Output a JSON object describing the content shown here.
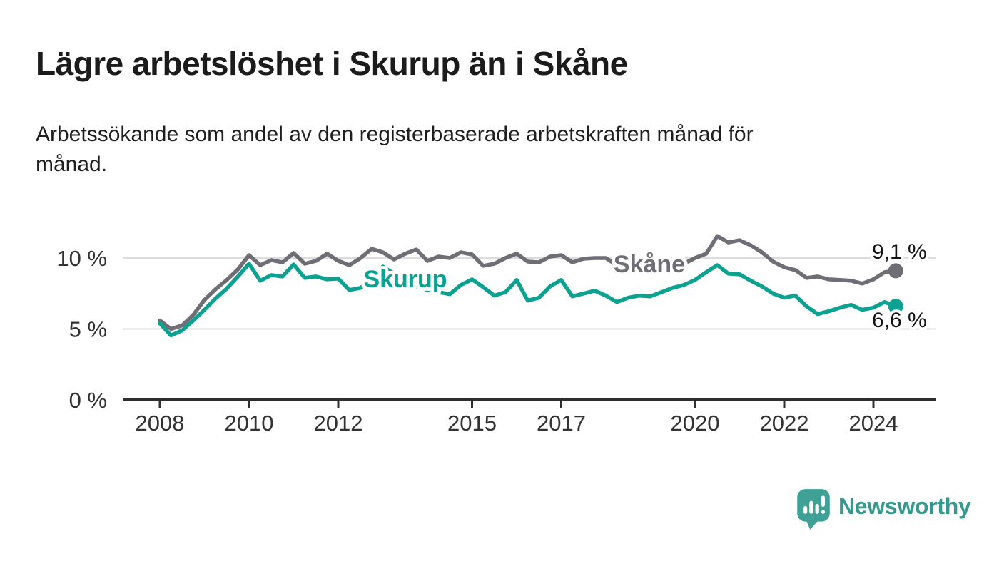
{
  "header": {
    "title": "Lägre arbetslöshet i Skurup än i Skåne",
    "subtitle_lines": [
      "Arbetssökande som andel av den registerbaserade arbetskraften månad för",
      "månad."
    ]
  },
  "footer": {
    "brand": "Newsworthy"
  },
  "colors": {
    "skane_gray": "#6f6e76",
    "skurup_teal": "#0ba291",
    "axis_dark": "#2f2f2f",
    "grid_light": "#dcdcdc",
    "label_dark": "#141414",
    "logo_teal": "#3fa096"
  },
  "chart_data": {
    "type": "line",
    "title": "Lägre arbetslöshet i Skurup än i Skåne",
    "subtitle": "Arbetssökande som andel av den registerbaserade arbetskraften månad för månad.",
    "grid": "horizontal",
    "legend_position": "inline-labels",
    "xlim": [
      2007.95,
      2025.4
    ],
    "ylim": [
      0,
      12.6
    ],
    "x_ticks": [
      {
        "value": 2008,
        "label": "2008"
      },
      {
        "value": 2010,
        "label": "2010"
      },
      {
        "value": 2012,
        "label": "2012"
      },
      {
        "value": 2015,
        "label": "2015"
      },
      {
        "value": 2017,
        "label": "2017"
      },
      {
        "value": 2020,
        "label": "2020"
      },
      {
        "value": 2022,
        "label": "2022"
      },
      {
        "value": 2024,
        "label": "2024"
      }
    ],
    "y_ticks": [
      {
        "value": 0,
        "label": "0 %"
      },
      {
        "value": 5,
        "label": "5 %"
      },
      {
        "value": 10,
        "label": "10 %"
      }
    ],
    "series": [
      {
        "name": "Skåne",
        "color": "#6f6e76",
        "end_value": 9.1,
        "end_label": "9,1 %",
        "points": [
          [
            2008.0,
            5.6
          ],
          [
            2008.25,
            5.0
          ],
          [
            2008.5,
            5.25
          ],
          [
            2008.75,
            6.0
          ],
          [
            2009.0,
            7.05
          ],
          [
            2009.25,
            7.8
          ],
          [
            2009.5,
            8.45
          ],
          [
            2009.75,
            9.2
          ],
          [
            2010.0,
            10.2
          ],
          [
            2010.25,
            9.5
          ],
          [
            2010.5,
            9.85
          ],
          [
            2010.75,
            9.7
          ],
          [
            2011.0,
            10.35
          ],
          [
            2011.25,
            9.6
          ],
          [
            2011.5,
            9.8
          ],
          [
            2011.75,
            10.3
          ],
          [
            2012.0,
            9.8
          ],
          [
            2012.25,
            9.5
          ],
          [
            2012.5,
            10.0
          ],
          [
            2012.75,
            10.65
          ],
          [
            2013.0,
            10.4
          ],
          [
            2013.25,
            9.9
          ],
          [
            2013.5,
            10.3
          ],
          [
            2013.75,
            10.6
          ],
          [
            2014.0,
            9.8
          ],
          [
            2014.25,
            10.1
          ],
          [
            2014.5,
            10.0
          ],
          [
            2014.75,
            10.4
          ],
          [
            2015.0,
            10.25
          ],
          [
            2015.25,
            9.45
          ],
          [
            2015.5,
            9.6
          ],
          [
            2015.75,
            10.0
          ],
          [
            2016.0,
            10.3
          ],
          [
            2016.25,
            9.75
          ],
          [
            2016.5,
            9.7
          ],
          [
            2016.75,
            10.1
          ],
          [
            2017.0,
            10.2
          ],
          [
            2017.25,
            9.7
          ],
          [
            2017.5,
            9.95
          ],
          [
            2017.75,
            10.0
          ],
          [
            2018.0,
            10.0
          ],
          [
            2018.25,
            9.5
          ],
          [
            2018.5,
            9.55
          ],
          [
            2018.75,
            9.6
          ],
          [
            2019.0,
            9.7
          ],
          [
            2019.25,
            9.6
          ],
          [
            2019.5,
            9.55
          ],
          [
            2019.75,
            9.6
          ],
          [
            2020.0,
            10.0
          ],
          [
            2020.25,
            10.3
          ],
          [
            2020.5,
            11.55
          ],
          [
            2020.75,
            11.1
          ],
          [
            2021.0,
            11.25
          ],
          [
            2021.25,
            10.9
          ],
          [
            2021.5,
            10.4
          ],
          [
            2021.75,
            9.75
          ],
          [
            2022.0,
            9.35
          ],
          [
            2022.25,
            9.15
          ],
          [
            2022.5,
            8.6
          ],
          [
            2022.75,
            8.7
          ],
          [
            2023.0,
            8.5
          ],
          [
            2023.25,
            8.45
          ],
          [
            2023.5,
            8.4
          ],
          [
            2023.75,
            8.2
          ],
          [
            2024.0,
            8.5
          ],
          [
            2024.25,
            9.0
          ],
          [
            2024.5,
            9.1
          ]
        ]
      },
      {
        "name": "Skurup",
        "color": "#0ba291",
        "end_value": 6.6,
        "end_label": "6,6 %",
        "points": [
          [
            2008.0,
            5.4
          ],
          [
            2008.25,
            4.55
          ],
          [
            2008.5,
            4.9
          ],
          [
            2008.75,
            5.6
          ],
          [
            2009.0,
            6.35
          ],
          [
            2009.25,
            7.15
          ],
          [
            2009.5,
            7.85
          ],
          [
            2009.75,
            8.7
          ],
          [
            2010.0,
            9.6
          ],
          [
            2010.25,
            8.4
          ],
          [
            2010.5,
            8.8
          ],
          [
            2010.75,
            8.7
          ],
          [
            2011.0,
            9.55
          ],
          [
            2011.25,
            8.6
          ],
          [
            2011.5,
            8.7
          ],
          [
            2011.75,
            8.5
          ],
          [
            2012.0,
            8.55
          ],
          [
            2012.25,
            7.75
          ],
          [
            2012.5,
            7.9
          ],
          [
            2012.75,
            8.6
          ],
          [
            2013.0,
            9.4
          ],
          [
            2013.25,
            8.9
          ],
          [
            2013.5,
            8.4
          ],
          [
            2013.75,
            8.0
          ],
          [
            2014.0,
            7.75
          ],
          [
            2014.25,
            7.6
          ],
          [
            2014.5,
            7.45
          ],
          [
            2014.75,
            8.1
          ],
          [
            2015.0,
            8.5
          ],
          [
            2015.25,
            7.95
          ],
          [
            2015.5,
            7.35
          ],
          [
            2015.75,
            7.6
          ],
          [
            2016.0,
            8.45
          ],
          [
            2016.25,
            7.0
          ],
          [
            2016.5,
            7.2
          ],
          [
            2016.75,
            8.0
          ],
          [
            2017.0,
            8.45
          ],
          [
            2017.25,
            7.3
          ],
          [
            2017.5,
            7.5
          ],
          [
            2017.75,
            7.7
          ],
          [
            2018.0,
            7.35
          ],
          [
            2018.25,
            6.9
          ],
          [
            2018.5,
            7.2
          ],
          [
            2018.75,
            7.35
          ],
          [
            2019.0,
            7.3
          ],
          [
            2019.25,
            7.6
          ],
          [
            2019.5,
            7.9
          ],
          [
            2019.75,
            8.1
          ],
          [
            2020.0,
            8.45
          ],
          [
            2020.25,
            9.0
          ],
          [
            2020.5,
            9.5
          ],
          [
            2020.75,
            8.9
          ],
          [
            2021.0,
            8.85
          ],
          [
            2021.25,
            8.4
          ],
          [
            2021.5,
            8.0
          ],
          [
            2021.75,
            7.5
          ],
          [
            2022.0,
            7.2
          ],
          [
            2022.25,
            7.35
          ],
          [
            2022.5,
            6.6
          ],
          [
            2022.75,
            6.05
          ],
          [
            2023.0,
            6.25
          ],
          [
            2023.25,
            6.5
          ],
          [
            2023.5,
            6.7
          ],
          [
            2023.75,
            6.35
          ],
          [
            2024.0,
            6.5
          ],
          [
            2024.25,
            6.9
          ],
          [
            2024.5,
            6.6
          ]
        ]
      }
    ]
  }
}
